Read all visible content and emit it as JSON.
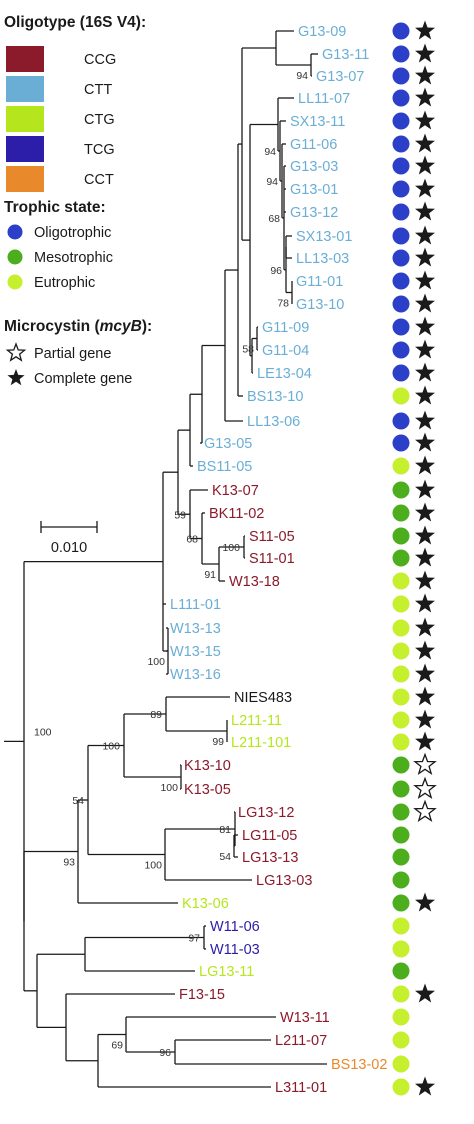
{
  "colors": {
    "CCG": "#8b1a2b",
    "CTT": "#6aaed6",
    "CTG": "#b5e61d",
    "TCG": "#2c1ea8",
    "CCT": "#e8892b",
    "none": "#1a1a1a",
    "oligo": "#2b3fc9",
    "meso": "#4cae1c",
    "eu": "#c6ef2e",
    "star": "#1a1a1a"
  },
  "legend": {
    "oligotype_title": "Oligotype (16S V4):",
    "oligotypes": [
      {
        "label": "CCG",
        "color_key": "CCG"
      },
      {
        "label": "CTT",
        "color_key": "CTT"
      },
      {
        "label": "CTG",
        "color_key": "CTG"
      },
      {
        "label": "TCG",
        "color_key": "TCG"
      },
      {
        "label": "CCT",
        "color_key": "CCT"
      }
    ],
    "trophic_title": "Trophic state:",
    "trophic": [
      {
        "label": "Oligotrophic",
        "color_key": "oligo"
      },
      {
        "label": "Mesotrophic",
        "color_key": "meso"
      },
      {
        "label": "Eutrophic",
        "color_key": "eu"
      }
    ],
    "mcy_title_prefix": "Microcystin (",
    "mcy_title_gene": "mcyB",
    "mcy_title_suffix": "):",
    "mcy": [
      {
        "label": "Partial gene",
        "kind": "partial"
      },
      {
        "label": "Complete gene",
        "kind": "complete"
      }
    ]
  },
  "scale_label": "0.010",
  "leaves": [
    {
      "name": "G13-09",
      "oligo": "CTT",
      "trophic": "oligo",
      "mcy": "complete"
    },
    {
      "name": "G13-11",
      "oligo": "CTT",
      "trophic": "oligo",
      "mcy": "complete"
    },
    {
      "name": "G13-07",
      "oligo": "CTT",
      "trophic": "oligo",
      "mcy": "complete"
    },
    {
      "name": "LL11-07",
      "oligo": "CTT",
      "trophic": "oligo",
      "mcy": "complete"
    },
    {
      "name": "SX13-11",
      "oligo": "CTT",
      "trophic": "oligo",
      "mcy": "complete"
    },
    {
      "name": "G11-06",
      "oligo": "CTT",
      "trophic": "oligo",
      "mcy": "complete"
    },
    {
      "name": "G13-03",
      "oligo": "CTT",
      "trophic": "oligo",
      "mcy": "complete"
    },
    {
      "name": "G13-01",
      "oligo": "CTT",
      "trophic": "oligo",
      "mcy": "complete"
    },
    {
      "name": "G13-12",
      "oligo": "CTT",
      "trophic": "oligo",
      "mcy": "complete"
    },
    {
      "name": "SX13-01",
      "oligo": "CTT",
      "trophic": "oligo",
      "mcy": "complete"
    },
    {
      "name": "LL13-03",
      "oligo": "CTT",
      "trophic": "oligo",
      "mcy": "complete"
    },
    {
      "name": "G11-01",
      "oligo": "CTT",
      "trophic": "oligo",
      "mcy": "complete"
    },
    {
      "name": "G13-10",
      "oligo": "CTT",
      "trophic": "oligo",
      "mcy": "complete"
    },
    {
      "name": "G11-09",
      "oligo": "CTT",
      "trophic": "oligo",
      "mcy": "complete"
    },
    {
      "name": "G11-04",
      "oligo": "CTT",
      "trophic": "oligo",
      "mcy": "complete"
    },
    {
      "name": "LE13-04",
      "oligo": "CTT",
      "trophic": "oligo",
      "mcy": "complete"
    },
    {
      "name": "BS13-10",
      "oligo": "CTT",
      "trophic": "eu",
      "mcy": "complete"
    },
    {
      "name": "LL13-06",
      "oligo": "CTT",
      "trophic": "oligo",
      "mcy": "complete"
    },
    {
      "name": "G13-05",
      "oligo": "CTT",
      "trophic": "oligo",
      "mcy": "complete"
    },
    {
      "name": "BS11-05",
      "oligo": "CTT",
      "trophic": "eu",
      "mcy": "complete"
    },
    {
      "name": "K13-07",
      "oligo": "CCG",
      "trophic": "meso",
      "mcy": "complete"
    },
    {
      "name": "BK11-02",
      "oligo": "CCG",
      "trophic": "meso",
      "mcy": "complete"
    },
    {
      "name": "S11-05",
      "oligo": "CCG",
      "trophic": "meso",
      "mcy": "complete"
    },
    {
      "name": "S11-01",
      "oligo": "CCG",
      "trophic": "meso",
      "mcy": "complete"
    },
    {
      "name": "W13-18",
      "oligo": "CCG",
      "trophic": "eu",
      "mcy": "complete"
    },
    {
      "name": "L111-01",
      "oligo": "CTT",
      "trophic": "eu",
      "mcy": "complete"
    },
    {
      "name": "W13-13",
      "oligo": "CTT",
      "trophic": "eu",
      "mcy": "complete"
    },
    {
      "name": "W13-15",
      "oligo": "CTT",
      "trophic": "eu",
      "mcy": "complete"
    },
    {
      "name": "W13-16",
      "oligo": "CTT",
      "trophic": "eu",
      "mcy": "complete"
    },
    {
      "name": "NIES483",
      "oligo": "none",
      "trophic": "eu",
      "mcy": "complete"
    },
    {
      "name": "L211-11",
      "oligo": "CTG",
      "trophic": "eu",
      "mcy": "complete"
    },
    {
      "name": "L211-101",
      "oligo": "CTG",
      "trophic": "eu",
      "mcy": "complete"
    },
    {
      "name": "K13-10",
      "oligo": "CCG",
      "trophic": "meso",
      "mcy": "partial"
    },
    {
      "name": "K13-05",
      "oligo": "CCG",
      "trophic": "meso",
      "mcy": "partial"
    },
    {
      "name": "LG13-12",
      "oligo": "CCG",
      "trophic": "meso",
      "mcy": "partial"
    },
    {
      "name": "LG11-05",
      "oligo": "CCG",
      "trophic": "meso",
      "mcy": "none"
    },
    {
      "name": "LG13-13",
      "oligo": "CCG",
      "trophic": "meso",
      "mcy": "none"
    },
    {
      "name": "LG13-03",
      "oligo": "CCG",
      "trophic": "meso",
      "mcy": "none"
    },
    {
      "name": "K13-06",
      "oligo": "CTG",
      "trophic": "meso",
      "mcy": "complete"
    },
    {
      "name": "W11-06",
      "oligo": "TCG",
      "trophic": "eu",
      "mcy": "none"
    },
    {
      "name": "W11-03",
      "oligo": "TCG",
      "trophic": "eu",
      "mcy": "none"
    },
    {
      "name": "LG13-11",
      "oligo": "CTG",
      "trophic": "meso",
      "mcy": "none"
    },
    {
      "name": "F13-15",
      "oligo": "CCG",
      "trophic": "eu",
      "mcy": "complete"
    },
    {
      "name": "W13-11",
      "oligo": "CCG",
      "trophic": "eu",
      "mcy": "none"
    },
    {
      "name": "L211-07",
      "oligo": "CCG",
      "trophic": "eu",
      "mcy": "none"
    },
    {
      "name": "BS13-02",
      "oligo": "CCT",
      "trophic": "eu",
      "mcy": "none"
    },
    {
      "name": "L311-01",
      "oligo": "CCG",
      "trophic": "eu",
      "mcy": "complete"
    }
  ],
  "bootstrap": [
    "94",
    "94",
    "94",
    "68",
    "96",
    "78",
    "58",
    "100",
    "59",
    "68",
    "91",
    "100",
    "100",
    "99",
    "89",
    "100",
    "100",
    "54",
    "81",
    "100",
    "54",
    "93",
    "97",
    "96",
    "69"
  ]
}
